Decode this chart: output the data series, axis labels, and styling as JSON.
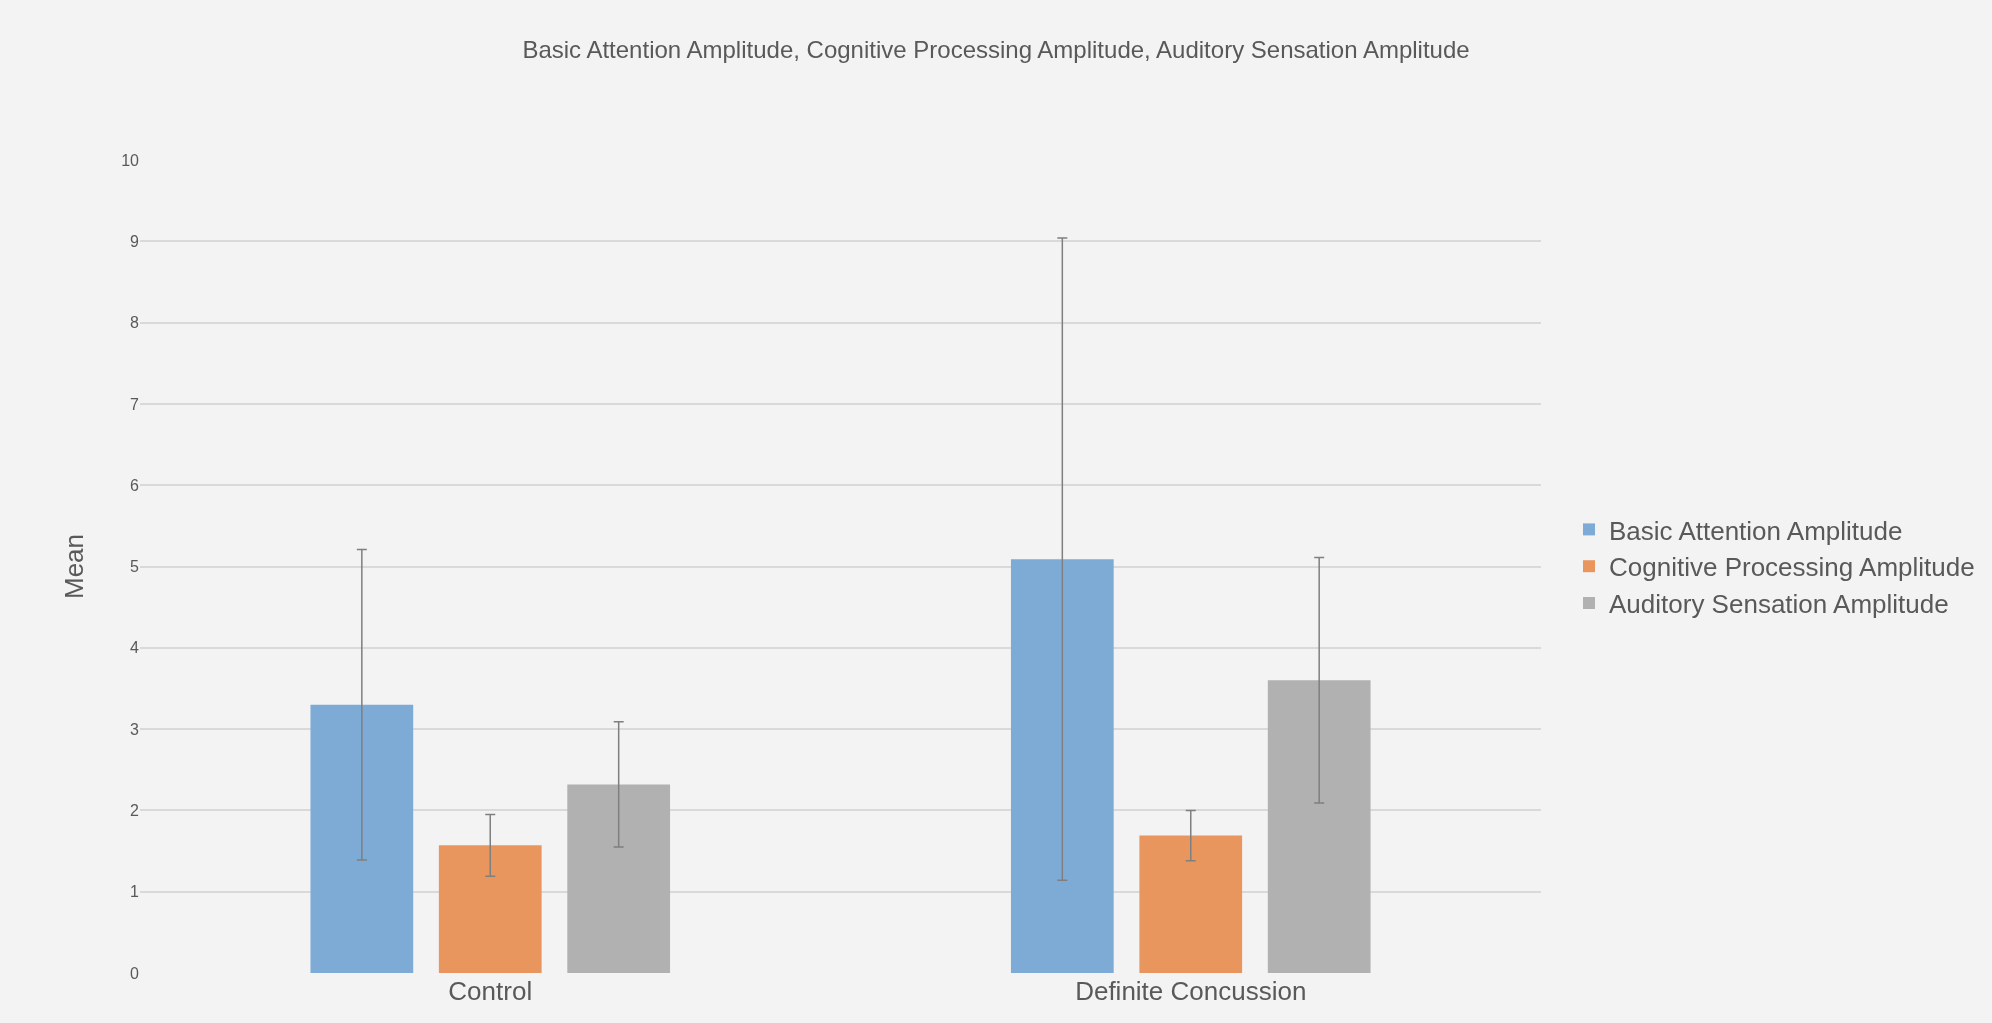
{
  "chart_data": {
    "type": "bar",
    "title": "Basic Attention Amplitude, Cognitive Processing Amplitude, Auditory Sensation Amplitude",
    "ylabel": "Mean",
    "categories": [
      "Control",
      "Definite Concussion"
    ],
    "series": [
      {
        "name": "Basic Attention Amplitude",
        "color": "#7eabd6",
        "values": [
          3.3,
          5.09
        ],
        "errors": [
          1.91,
          3.95
        ]
      },
      {
        "name": "Cognitive Processing Amplitude",
        "color": "#e8965d",
        "values": [
          1.57,
          1.69
        ],
        "errors": [
          0.38,
          0.31
        ]
      },
      {
        "name": "Auditory Sensation Amplitude",
        "color": "#b1b1b1",
        "values": [
          2.32,
          3.6
        ],
        "errors": [
          0.77,
          1.51
        ]
      }
    ],
    "ylim": [
      0,
      10
    ],
    "yticks": [
      0,
      1,
      2,
      3,
      4,
      5,
      6,
      7,
      8,
      9,
      10
    ],
    "grid": "y",
    "legend": "right"
  }
}
